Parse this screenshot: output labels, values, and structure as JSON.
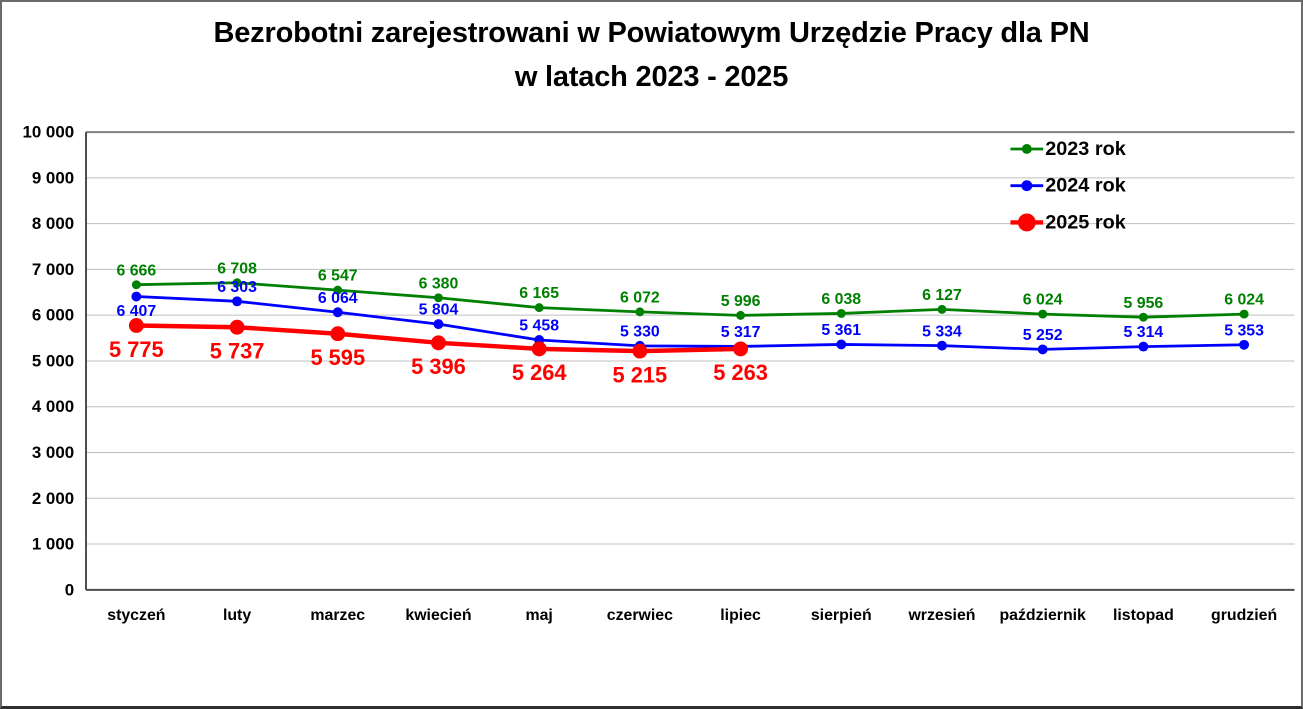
{
  "title": {
    "line1": "Bezrobotni zarejestrowani w Powiatowym Urzędzie Pracy dla PN",
    "line2": "w latach 2023 - 2025"
  },
  "chart_data": {
    "type": "line",
    "title": "Bezrobotni zarejestrowani w Powiatowym Urzędzie Pracy dla PN w latach 2023 - 2025",
    "categories": [
      "styczeń",
      "luty",
      "marzec",
      "kwiecień",
      "maj",
      "czerwiec",
      "lipiec",
      "sierpień",
      "wrzesień",
      "październik",
      "listopad",
      "grudzień"
    ],
    "series": [
      {
        "name": "2023 rok",
        "color": "#008000",
        "values": [
          6666,
          6708,
          6547,
          6380,
          6165,
          6072,
          5996,
          6038,
          6127,
          6024,
          5956,
          6024
        ]
      },
      {
        "name": "2024 rok",
        "color": "#0000FF",
        "values": [
          6407,
          6303,
          6064,
          5804,
          5458,
          5330,
          5317,
          5361,
          5334,
          5252,
          5314,
          5353
        ]
      },
      {
        "name": "2025 rok",
        "color": "#FF0000",
        "values": [
          5775,
          5737,
          5595,
          5396,
          5264,
          5215,
          5263
        ]
      }
    ],
    "ylim": [
      0,
      10000
    ],
    "ytick_step": 1000,
    "ytick_labels": [
      "0",
      "1 000",
      "2 000",
      "3 000",
      "4 000",
      "5 000",
      "6 000",
      "7 000",
      "8 000",
      "9 000",
      "10 000"
    ],
    "grid": true,
    "gridline_color": "#BFBFBF",
    "plot_top_border_color": "#808080",
    "axis_color": "#4D4D4D",
    "label_number_format": "space-thousands",
    "legend_position": "top-right",
    "legend_items": [
      "2023 rok",
      "2024 rok",
      "2025 rok"
    ],
    "text_color": "#000000",
    "background_color": "#FFFFFF"
  }
}
